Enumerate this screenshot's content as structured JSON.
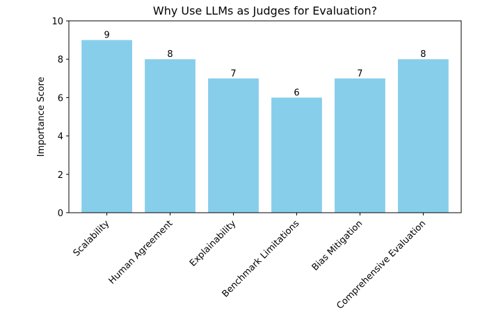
{
  "chart_data": {
    "type": "bar",
    "title": "Why Use LLMs as Judges for Evaluation?",
    "xlabel": "",
    "ylabel": "Importance Score",
    "categories": [
      "Scalability",
      "Human Agreement",
      "Explainability",
      "Benchmark Limitations",
      "Bias Mitigation",
      "Comprehensive Evaluation"
    ],
    "values": [
      9,
      8,
      7,
      6,
      7,
      8
    ],
    "ylim": [
      0,
      10
    ],
    "yticks": [
      0,
      2,
      4,
      6,
      8,
      10
    ],
    "bar_color": "#87ceeb",
    "grid": false,
    "legend": "none",
    "data_labels": true
  }
}
